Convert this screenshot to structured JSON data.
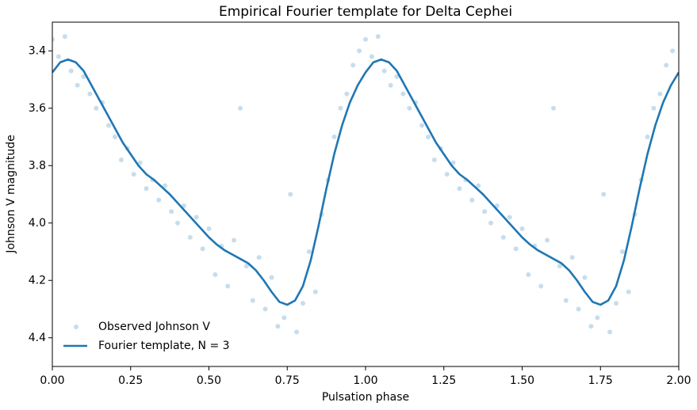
{
  "chart_data": {
    "type": "scatter",
    "title": "Empirical Fourier template for Delta Cephei",
    "x_label": "Pulsation phase",
    "y_label": "Johnson V magnitude",
    "xlim": [
      0,
      2
    ],
    "ylim": [
      3.3,
      4.5
    ],
    "y_inverted": true,
    "legend": "lower left",
    "xticks": [
      {
        "value": 0,
        "label": "0.00"
      },
      {
        "value": 0.25,
        "label": "0.25"
      },
      {
        "value": 0.5,
        "label": "0.50"
      },
      {
        "value": 0.75,
        "label": "0.75"
      },
      {
        "value": 1,
        "label": "1.00"
      },
      {
        "value": 1.25,
        "label": "1.25"
      },
      {
        "value": 1.5,
        "label": "1.50"
      },
      {
        "value": 1.75,
        "label": "1.75"
      },
      {
        "value": 2,
        "label": "2.00"
      }
    ],
    "yticks": [
      3.4,
      3.6,
      3.8,
      {
        "value": 4,
        "label": "4.0"
      },
      4.2,
      4.4
    ],
    "series": [
      {
        "name": "Observed Johnson V",
        "type": "scatter",
        "color": "#1f77b4",
        "alpha": 0.25,
        "x": [
          0.0,
          0.02,
          0.04,
          0.06,
          0.08,
          0.1,
          0.12,
          0.14,
          0.16,
          0.18,
          0.2,
          0.22,
          0.24,
          0.26,
          0.28,
          0.3,
          0.32,
          0.34,
          0.36,
          0.38,
          0.4,
          0.42,
          0.44,
          0.46,
          0.48,
          0.5,
          0.52,
          0.54,
          0.56,
          0.58,
          0.6,
          0.62,
          0.64,
          0.66,
          0.68,
          0.7,
          0.72,
          0.74,
          0.76,
          0.78,
          0.8,
          0.82,
          0.84,
          0.86,
          0.88,
          0.9,
          0.92,
          0.94,
          0.96,
          0.98,
          1.0,
          1.02,
          1.04,
          1.06,
          1.08,
          1.1,
          1.12,
          1.14,
          1.16,
          1.18,
          1.2,
          1.22,
          1.24,
          1.26,
          1.28,
          1.3,
          1.32,
          1.34,
          1.36,
          1.38,
          1.4,
          1.42,
          1.44,
          1.46,
          1.48,
          1.5,
          1.52,
          1.54,
          1.56,
          1.58,
          1.6,
          1.62,
          1.64,
          1.66,
          1.68,
          1.7,
          1.72,
          1.74,
          1.76,
          1.78,
          1.8,
          1.82,
          1.84,
          1.86,
          1.88,
          1.9,
          1.92,
          1.94,
          1.96,
          1.98
        ],
        "values": [
          3.36,
          3.42,
          3.35,
          3.47,
          3.52,
          3.49,
          3.55,
          3.6,
          3.58,
          3.66,
          3.7,
          3.78,
          3.74,
          3.83,
          3.79,
          3.88,
          3.85,
          3.92,
          3.87,
          3.96,
          4.0,
          3.94,
          4.05,
          3.98,
          4.09,
          4.02,
          4.18,
          4.08,
          4.22,
          4.06,
          3.6,
          4.15,
          4.27,
          4.12,
          4.3,
          4.19,
          4.36,
          4.33,
          3.9,
          4.38,
          4.28,
          4.1,
          4.24,
          3.97,
          3.85,
          3.7,
          3.6,
          3.55,
          3.45,
          3.4,
          3.36,
          3.42,
          3.35,
          3.47,
          3.52,
          3.49,
          3.55,
          3.6,
          3.58,
          3.66,
          3.7,
          3.78,
          3.74,
          3.83,
          3.79,
          3.88,
          3.85,
          3.92,
          3.87,
          3.96,
          4.0,
          3.94,
          4.05,
          3.98,
          4.09,
          4.02,
          4.18,
          4.08,
          4.22,
          4.06,
          3.6,
          4.15,
          4.27,
          4.12,
          4.3,
          4.19,
          4.36,
          4.33,
          3.9,
          4.38,
          4.28,
          4.1,
          4.24,
          3.97,
          3.85,
          3.7,
          3.6,
          3.55,
          3.45,
          3.4
        ]
      },
      {
        "name": "Fourier template, N = 3",
        "type": "line",
        "color": "#1f77b4",
        "x": [
          0,
          0.025,
          0.05,
          0.075,
          0.1,
          0.125,
          0.15,
          0.175,
          0.2,
          0.225,
          0.25,
          0.275,
          0.3,
          0.325,
          0.35,
          0.375,
          0.4,
          0.425,
          0.45,
          0.475,
          0.5,
          0.525,
          0.55,
          0.575,
          0.6,
          0.625,
          0.65,
          0.675,
          0.7,
          0.725,
          0.75,
          0.775,
          0.8,
          0.825,
          0.85,
          0.875,
          0.9,
          0.925,
          0.95,
          0.975,
          1,
          1.025,
          1.05,
          1.075,
          1.1,
          1.125,
          1.15,
          1.175,
          1.2,
          1.225,
          1.25,
          1.275,
          1.3,
          1.325,
          1.35,
          1.375,
          1.4,
          1.425,
          1.45,
          1.475,
          1.5,
          1.525,
          1.55,
          1.575,
          1.6,
          1.625,
          1.65,
          1.675,
          1.7,
          1.725,
          1.75,
          1.775,
          1.8,
          1.825,
          1.85,
          1.875,
          1.9,
          1.925,
          1.95,
          1.975,
          2
        ],
        "values": [
          3.475,
          3.44,
          3.43,
          3.44,
          3.47,
          3.52,
          3.57,
          3.62,
          3.67,
          3.72,
          3.76,
          3.8,
          3.83,
          3.85,
          3.875,
          3.9,
          3.93,
          3.96,
          3.99,
          4.02,
          4.05,
          4.075,
          4.095,
          4.11,
          4.125,
          4.14,
          4.165,
          4.2,
          4.24,
          4.275,
          4.285,
          4.27,
          4.22,
          4.13,
          4.01,
          3.88,
          3.76,
          3.66,
          3.58,
          3.52,
          3.475,
          3.44,
          3.43,
          3.44,
          3.47,
          3.52,
          3.57,
          3.62,
          3.67,
          3.72,
          3.76,
          3.8,
          3.83,
          3.85,
          3.875,
          3.9,
          3.93,
          3.96,
          3.99,
          4.02,
          4.05,
          4.075,
          4.095,
          4.11,
          4.125,
          4.14,
          4.165,
          4.2,
          4.24,
          4.275,
          4.285,
          4.27,
          4.22,
          4.13,
          4.01,
          3.88,
          3.76,
          3.66,
          3.58,
          3.52,
          3.475
        ]
      }
    ]
  }
}
